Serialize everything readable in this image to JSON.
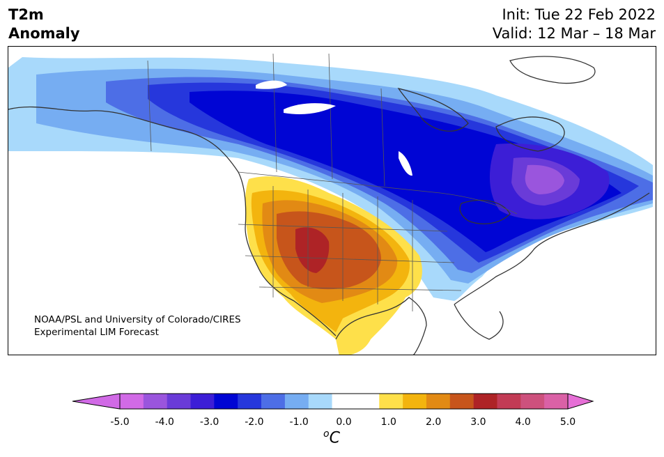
{
  "title": {
    "line1": "T2m",
    "line2": "Anomaly"
  },
  "dates": {
    "init": "Init: Tue 22 Feb 2022",
    "valid": "Valid: 12 Mar – 18 Mar"
  },
  "credit": {
    "line1": "NOAA/PSL and University of Colorado/CIRES",
    "line2": "Experimental LIM Forecast"
  },
  "colorbar": {
    "unit_sup": "o",
    "unit": "C",
    "ticks": [
      "-5.0",
      "-4.0",
      "-3.0",
      "-2.0",
      "-1.0",
      "0.0",
      "1.0",
      "2.0",
      "3.0",
      "4.0",
      "5.0"
    ],
    "colors": [
      "#d16ae6",
      "#9a55dd",
      "#6a3bd8",
      "#3c1ed6",
      "#0005d4",
      "#2637dc",
      "#4d6ee6",
      "#76adf2",
      "#a8d9fb",
      "#ffffff",
      "#ffffff",
      "#fee04a",
      "#f3b40e",
      "#e28a14",
      "#c7551b",
      "#ae2326",
      "#c23b55",
      "#cd517d",
      "#da61a6"
    ],
    "under_color": "#d16ae6",
    "over_color": "#e66fd6"
  },
  "map": {
    "background": "#ffffff",
    "outline_color": "#333333",
    "border_color": "#555555"
  }
}
